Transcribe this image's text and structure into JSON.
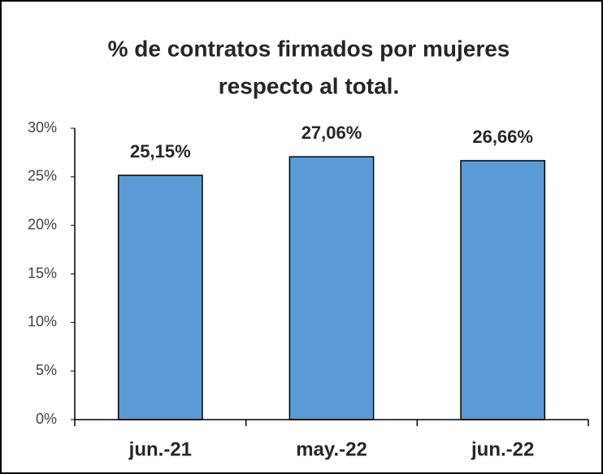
{
  "chart_data": {
    "type": "bar",
    "title": [
      "% de contratos firmados por mujeres",
      "respecto al total."
    ],
    "categories": [
      "jun.-21",
      "may.-22",
      "jun.-22"
    ],
    "values": [
      25.15,
      27.06,
      26.66
    ],
    "value_labels": [
      "25,15%",
      "27,06%",
      "26,66%"
    ],
    "color": "#5b9bd5",
    "ylim": [
      0,
      30
    ],
    "yticks": [
      {
        "value": 0,
        "label": "0%"
      },
      {
        "value": 5,
        "label": "5%"
      },
      {
        "value": 10,
        "label": "10%"
      },
      {
        "value": 15,
        "label": "15%"
      },
      {
        "value": 20,
        "label": "20%"
      },
      {
        "value": 25,
        "label": "25%"
      },
      {
        "value": 30,
        "label": "30%"
      }
    ],
    "grid": false
  }
}
